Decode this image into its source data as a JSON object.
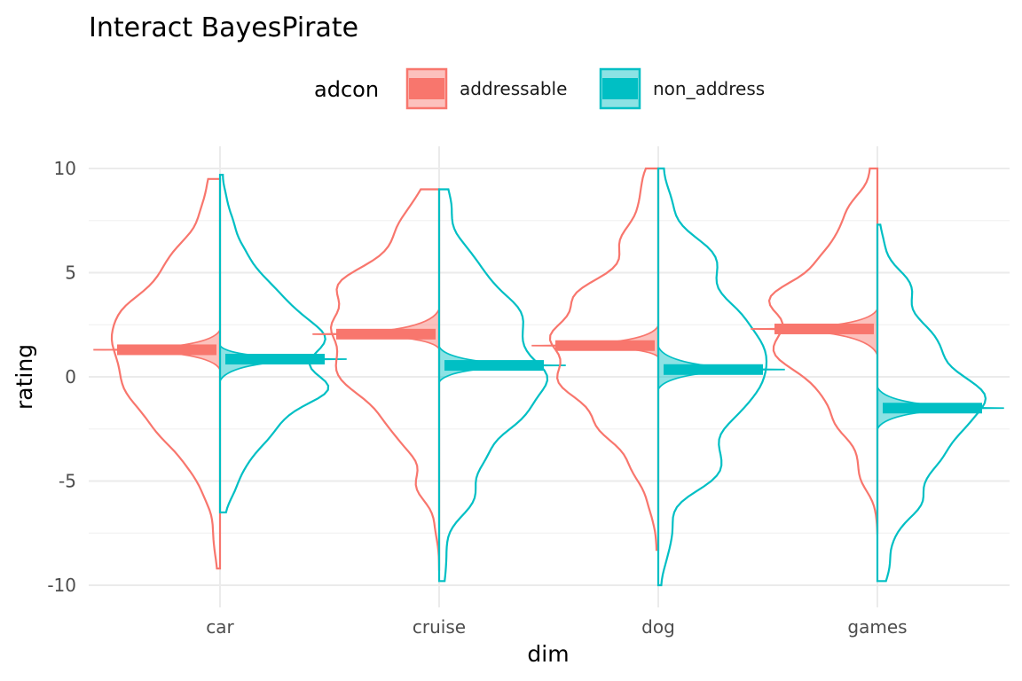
{
  "chart_data": {
    "type": "violin",
    "title": "Interact BayesPirate",
    "xlabel": "dim",
    "ylabel": "rating",
    "ylim": [
      -10,
      10
    ],
    "yticks": [
      -10,
      -5,
      0,
      5,
      10
    ],
    "ytick_labels": [
      "-10",
      "-5",
      "0",
      "5",
      "10"
    ],
    "grid": true,
    "legend": {
      "title": "adcon",
      "position": "top"
    },
    "categories": [
      "car",
      "cruise",
      "dog",
      "games"
    ],
    "series": [
      {
        "name": "addressable",
        "color": "#F8766D",
        "side": "left",
        "means": [
          1.3,
          2.05,
          1.5,
          2.3
        ],
        "hdi": [
          [
            0.35,
            2.25
          ],
          [
            1.35,
            3.25
          ],
          [
            0.95,
            2.45
          ],
          [
            1.05,
            3.25
          ]
        ],
        "range": [
          [
            -9.2,
            9.5
          ],
          [
            -9.3,
            9.0
          ],
          [
            -8.3,
            10.0
          ],
          [
            -7.5,
            10.0
          ]
        ]
      },
      {
        "name": "non_address",
        "color": "#00BFC4",
        "side": "right",
        "means": [
          0.85,
          0.55,
          0.35,
          -1.5
        ],
        "hdi": [
          [
            -0.2,
            1.5
          ],
          [
            -0.25,
            1.45
          ],
          [
            -0.6,
            1.45
          ],
          [
            -2.5,
            -0.5
          ]
        ],
        "range": [
          [
            -6.5,
            9.7
          ],
          [
            -9.8,
            9.0
          ],
          [
            -10.0,
            10.0
          ],
          [
            -9.8,
            7.3
          ]
        ]
      }
    ]
  }
}
